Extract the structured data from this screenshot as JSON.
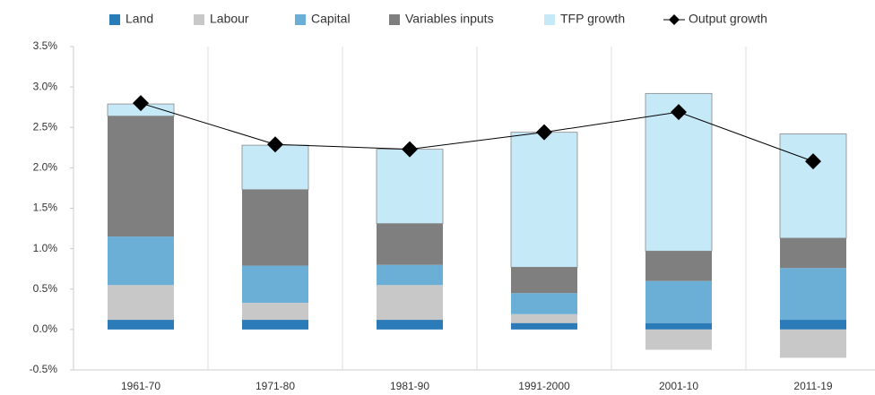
{
  "chart_data": {
    "type": "bar",
    "stacked": true,
    "categories": [
      "1961-70",
      "1971-80",
      "1981-90",
      "1991-2000",
      "2001-10",
      "2011-19"
    ],
    "series": [
      {
        "name": "Land",
        "color": "#2b7bb9",
        "values": [
          0.12,
          0.12,
          0.12,
          0.08,
          0.08,
          0.12
        ]
      },
      {
        "name": "Labour",
        "color": "#c8c8c8",
        "values": [
          0.43,
          0.21,
          0.43,
          0.11,
          -0.25,
          -0.35
        ]
      },
      {
        "name": "Capital",
        "color": "#6baed6",
        "values": [
          0.6,
          0.46,
          0.25,
          0.26,
          0.52,
          0.64
        ]
      },
      {
        "name": "Variables inputs",
        "color": "#7f7f7f",
        "values": [
          1.49,
          0.94,
          0.51,
          0.32,
          0.37,
          0.37
        ]
      },
      {
        "name": "TFP growth",
        "color": "#c6e9f8",
        "values": [
          0.15,
          0.55,
          0.92,
          1.67,
          1.95,
          1.29
        ]
      },
      {
        "name": "Output growth",
        "type": "line",
        "color": "#000000",
        "values": [
          2.8,
          2.29,
          2.23,
          2.44,
          2.69,
          2.08
        ]
      }
    ],
    "ylim": [
      -0.5,
      3.5
    ],
    "yticks": [
      {
        "value": -0.5,
        "label": "-0.5%"
      },
      {
        "value": 0,
        "label": "0.0%"
      },
      {
        "value": 0.5,
        "label": "0.5%"
      },
      {
        "value": 1,
        "label": "1.0%"
      },
      {
        "value": 1.5,
        "label": "1.5%"
      },
      {
        "value": 2,
        "label": "2.0%"
      },
      {
        "value": 2.5,
        "label": "2.5%"
      },
      {
        "value": 3,
        "label": "3.0%"
      },
      {
        "value": 3.5,
        "label": "3.5%"
      }
    ],
    "legend": "top"
  }
}
